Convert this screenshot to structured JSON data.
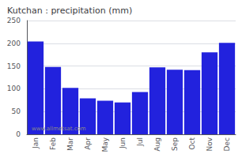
{
  "chart_data": {
    "type": "bar",
    "title": "Kutchan : precipitation (mm)",
    "categories": [
      "Jan",
      "Feb",
      "Mar",
      "Apr",
      "May",
      "Jun",
      "Jul",
      "Aug",
      "Sep",
      "Oct",
      "Nov",
      "Dec"
    ],
    "values": [
      204,
      148,
      102,
      79,
      74,
      70,
      93,
      147,
      142,
      141,
      180,
      201
    ],
    "color": "#2222dd",
    "ylim": [
      0,
      250
    ],
    "yticks": [
      0,
      50,
      100,
      150,
      200,
      250
    ],
    "grid": true,
    "annotations": [
      "www.allmetsat.com"
    ]
  }
}
